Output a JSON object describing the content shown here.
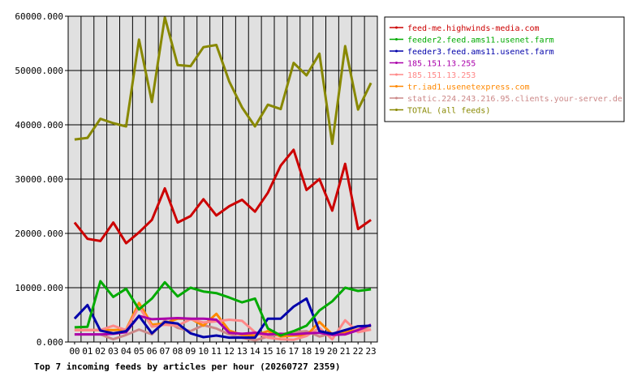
{
  "chart_data": {
    "type": "line",
    "title": "Top 7 incoming feeds by articles per hour (20260727 2359)",
    "xlabel": "",
    "ylabel": "",
    "categories": [
      "00",
      "01",
      "02",
      "03",
      "04",
      "05",
      "06",
      "07",
      "08",
      "09",
      "10",
      "11",
      "12",
      "13",
      "14",
      "15",
      "16",
      "17",
      "18",
      "19",
      "20",
      "21",
      "22",
      "23"
    ],
    "ylim": [
      0,
      60000
    ],
    "yticks": [
      0,
      10000,
      20000,
      30000,
      40000,
      50000,
      60000
    ],
    "ytick_labels": [
      "0.000",
      "10000.000",
      "20000.000",
      "30000.000",
      "40000.000",
      "50000.000",
      "60000.000"
    ],
    "grid": true,
    "legend_position": "right",
    "series": [
      {
        "name": "feed-me.highwinds-media.com",
        "color": "#cc0000",
        "values": [
          22000,
          19000,
          18600,
          22000,
          18200,
          20200,
          22500,
          28300,
          22000,
          23200,
          26300,
          23300,
          25000,
          26200,
          24000,
          27500,
          32500,
          35400,
          28000,
          30000,
          24200,
          32800,
          20800,
          22500
        ]
      },
      {
        "name": "feeder2.feed.ams11.usenet.farm",
        "color": "#00aa00",
        "values": [
          2700,
          2800,
          11200,
          8300,
          9800,
          6000,
          8000,
          11000,
          8400,
          10000,
          9300,
          9000,
          8200,
          7300,
          8000,
          2500,
          1200,
          2000,
          3000,
          5800,
          7500,
          10000,
          9400,
          9700
        ]
      },
      {
        "name": "feeder3.feed.ams11.usenet.farm",
        "color": "#0000aa",
        "values": [
          4300,
          6800,
          2100,
          1600,
          2000,
          4800,
          1600,
          3700,
          3400,
          1600,
          900,
          1200,
          800,
          800,
          800,
          4300,
          4300,
          6500,
          8000,
          2000,
          1500,
          2200,
          2900,
          3000
        ]
      },
      {
        "name": "185.151.13.255",
        "color": "#aa00aa",
        "values": [
          1400,
          1400,
          1400,
          1500,
          1800,
          4800,
          4200,
          4300,
          4400,
          4300,
          4300,
          4100,
          1700,
          1500,
          1700,
          1400,
          1500,
          1400,
          1600,
          1700,
          1300,
          1400,
          2200,
          3200
        ]
      },
      {
        "name": "185.151.13.253",
        "color": "#ff8888",
        "values": [
          2200,
          2200,
          2200,
          3000,
          2200,
          6500,
          2800,
          3200,
          3000,
          4200,
          3600,
          3800,
          4100,
          3900,
          1800,
          800,
          500,
          400,
          1100,
          2600,
          500,
          4000,
          1800,
          2300
        ]
      },
      {
        "name": "tr.iad1.usenetexpress.com",
        "color": "#ff8800",
        "values": [
          2200,
          2200,
          2200,
          2200,
          2300,
          7200,
          3200,
          3400,
          4300,
          4300,
          3000,
          5200,
          2100,
          1300,
          1200,
          2000,
          1000,
          1200,
          1200,
          3700,
          1400,
          1800,
          2300,
          3000
        ]
      },
      {
        "name": "static.224.243.216.95.clients.your-server.de",
        "color": "#cc8888",
        "values": [
          1400,
          1400,
          1400,
          500,
          1300,
          2300,
          1400,
          4000,
          2600,
          2000,
          3100,
          2500,
          1400,
          800,
          300,
          1000,
          1400,
          1800,
          2000,
          1000,
          1600,
          1400,
          2200,
          2300
        ]
      },
      {
        "name": "TOTAL (all feeds)",
        "color": "#888800",
        "values": [
          37300,
          37600,
          41100,
          40300,
          39700,
          55700,
          44200,
          59800,
          51000,
          50800,
          54300,
          54700,
          48000,
          43200,
          39700,
          43700,
          42900,
          51400,
          49100,
          53100,
          36500,
          54500,
          42800,
          47700
        ]
      }
    ]
  }
}
